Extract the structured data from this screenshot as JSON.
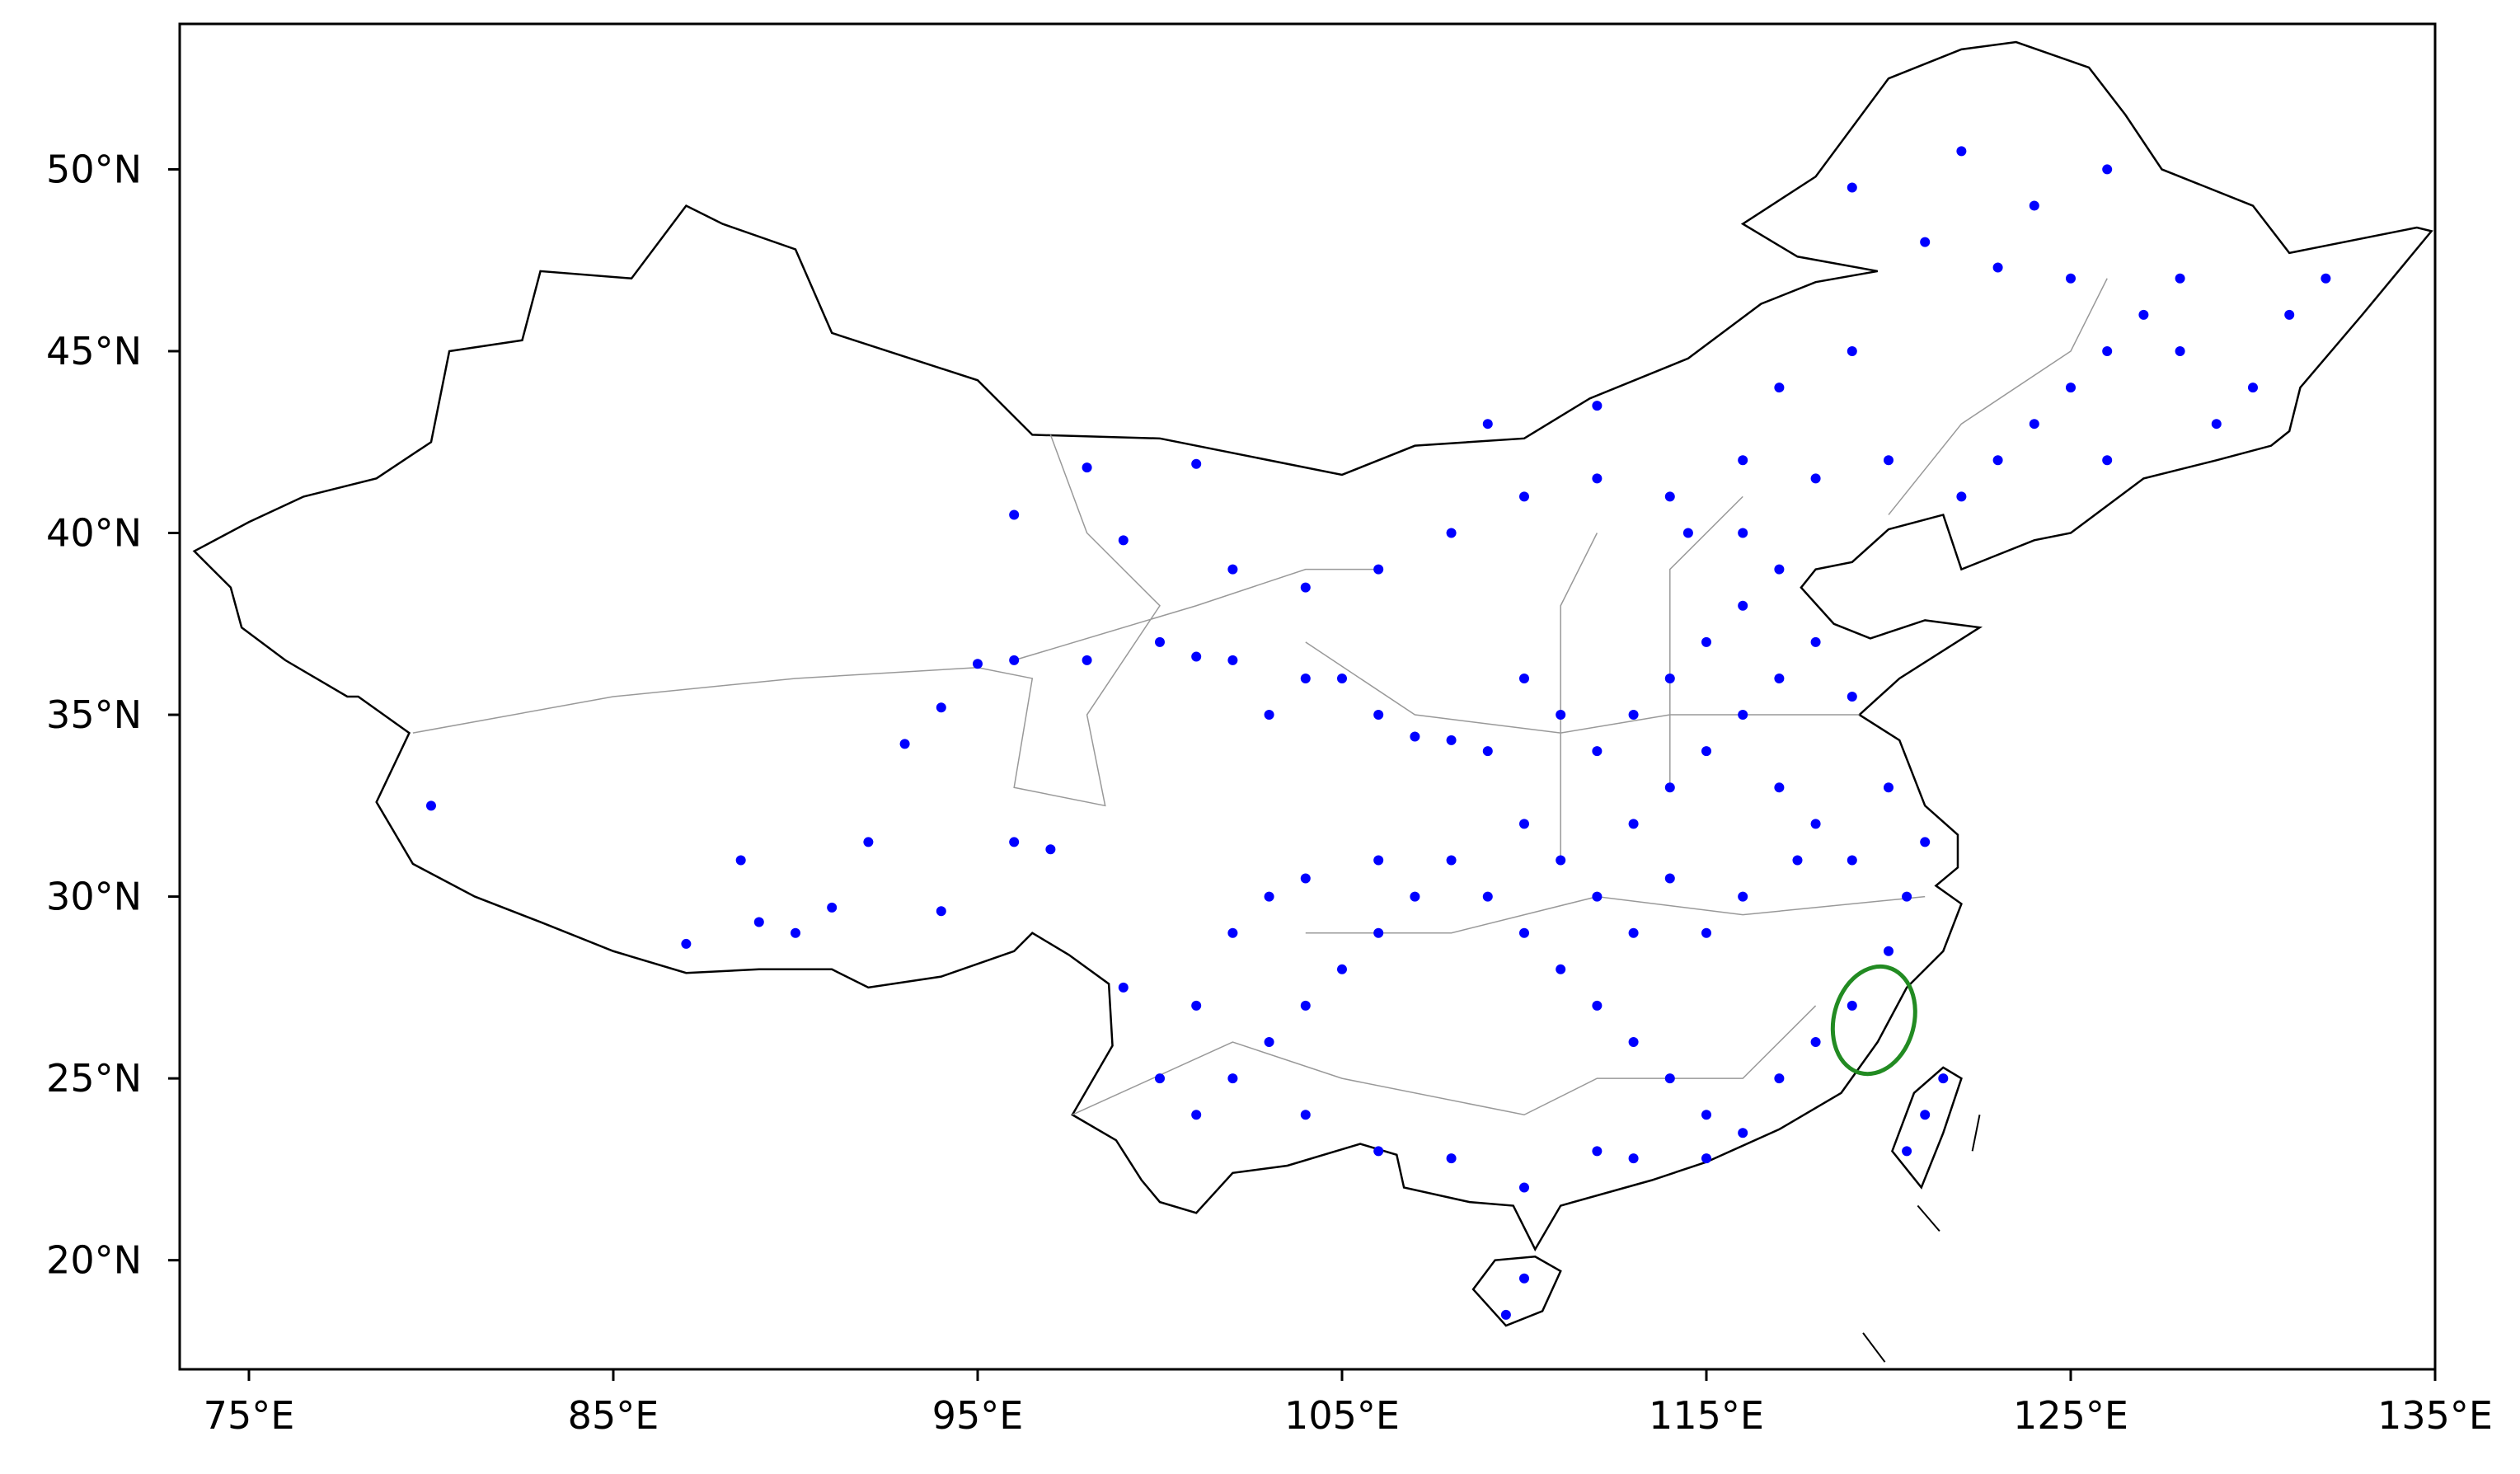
{
  "chart_data": {
    "type": "scatter",
    "color": "#0000ff",
    "xlim": [
      73.1,
      135
    ],
    "ylim": [
      17,
      54
    ],
    "xticks": [
      {
        "value": 75,
        "label": "75°E"
      },
      {
        "value": 85,
        "label": "85°E"
      },
      {
        "value": 95,
        "label": "95°E"
      },
      {
        "value": 105,
        "label": "105°E"
      },
      {
        "value": 115,
        "label": "115°E"
      },
      {
        "value": 125,
        "label": "125°E"
      },
      {
        "value": 135,
        "label": "135°E"
      }
    ],
    "yticks": [
      {
        "value": 20,
        "label": "20°N"
      },
      {
        "value": 25,
        "label": "25°N"
      },
      {
        "value": 30,
        "label": "30°N"
      },
      {
        "value": 35,
        "label": "35°N"
      },
      {
        "value": 40,
        "label": "40°N"
      },
      {
        "value": 45,
        "label": "45°N"
      },
      {
        "value": 50,
        "label": "50°N"
      }
    ],
    "x": [
      113,
      114,
      115,
      116,
      117,
      115,
      116,
      117,
      118,
      114,
      113,
      112,
      111,
      110,
      109,
      108,
      107,
      106,
      105,
      104,
      103,
      102,
      101,
      100,
      98,
      96,
      95,
      94,
      93,
      92,
      91,
      90,
      89,
      88.5,
      87,
      80,
      97,
      96,
      94,
      99,
      100,
      101,
      102,
      103,
      104,
      105,
      106,
      107,
      108,
      109,
      110,
      111,
      112,
      113,
      114,
      115,
      116,
      112,
      110,
      108,
      106,
      104,
      110,
      109.5,
      117,
      118,
      119,
      120,
      120.5,
      119,
      118,
      117,
      116,
      115,
      114,
      113,
      112,
      111,
      110,
      106,
      104,
      103,
      102,
      101,
      121,
      120.5,
      121.5,
      122,
      123,
      124,
      125,
      126,
      127,
      128,
      125,
      123,
      121,
      119,
      122,
      124,
      126,
      128,
      130,
      131,
      132,
      129,
      126,
      120,
      118,
      116,
      114,
      112,
      110,
      108,
      106,
      104,
      102,
      99,
      98,
      101,
      96,
      109,
      112,
      119,
      117,
      114.5,
      116,
      117.5,
      120,
      119,
      121,
      113,
      115
    ],
    "values": [
      35,
      36,
      37,
      38,
      39,
      34,
      35,
      36,
      37,
      33,
      32,
      34,
      35,
      36,
      34,
      34.3,
      34.4,
      35,
      36,
      36,
      35,
      36.5,
      36.6,
      37,
      36.5,
      36.5,
      36.4,
      35.2,
      34.2,
      31.5,
      29.7,
      29,
      29.3,
      31,
      28.7,
      32.5,
      31.3,
      31.5,
      29.6,
      27.5,
      25,
      24,
      25,
      26,
      27,
      28,
      29,
      30,
      31,
      30,
      29,
      28,
      27,
      26,
      25,
      24,
      23.5,
      23,
      22,
      22.8,
      23,
      24,
      19.5,
      18.5,
      25,
      26,
      27,
      28.5,
      30,
      31,
      32,
      33,
      30,
      29,
      30.5,
      29,
      30,
      31,
      32,
      31,
      30.5,
      30,
      29,
      27,
      24,
      23,
      25,
      41,
      42,
      43,
      44,
      45,
      46,
      47,
      47,
      47.3,
      48,
      49.5,
      50.5,
      49,
      50,
      45,
      44,
      46,
      47,
      43,
      42,
      42,
      41.5,
      42,
      41,
      41.5,
      41,
      40,
      39,
      38.5,
      39,
      39.8,
      41.8,
      41.9,
      40.5,
      43,
      43.5,
      45,
      44,
      40,
      40,
      31,
      33,
      35.5,
      31.5,
      22.8,
      22.8
    ]
  }
}
